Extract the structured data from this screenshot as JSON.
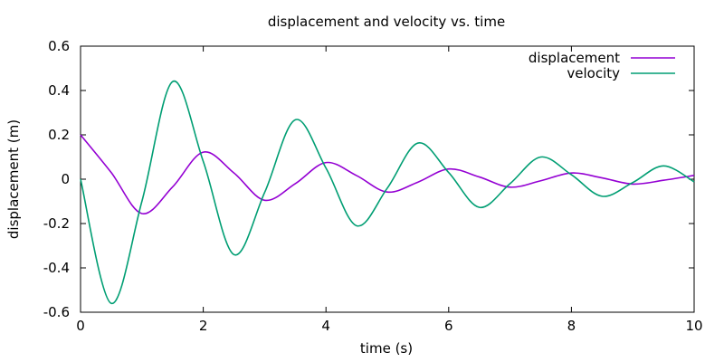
{
  "chart_data": {
    "type": "line",
    "title": "displacement and velocity vs. time",
    "xlabel": "time (s)",
    "ylabel": "displacement (m)",
    "xlim": [
      0,
      10
    ],
    "ylim": [
      -0.6,
      0.6
    ],
    "xticks": [
      0,
      2,
      4,
      6,
      8,
      10
    ],
    "yticks": [
      -0.6,
      -0.4,
      -0.2,
      0,
      0.2,
      0.4,
      0.6
    ],
    "xtick_labels": [
      "0",
      "2",
      "4",
      "6",
      "8",
      "10"
    ],
    "ytick_labels": [
      "-0.6",
      "-0.4",
      "-0.2",
      "0",
      "0.2",
      "0.4",
      "0.6"
    ],
    "grid": false,
    "legend_position": "top-right",
    "x": [
      0,
      0.5,
      1,
      1.5,
      2,
      2.5,
      3,
      3.5,
      4,
      4.5,
      5,
      5.5,
      6,
      6.5,
      7,
      7.5,
      8,
      8.5,
      9,
      9.5,
      10
    ],
    "series": [
      {
        "name": "displacement",
        "color": "#9400d3",
        "values": [
          0.2,
          0.03,
          -0.155,
          -0.035,
          0.122,
          0.028,
          -0.095,
          -0.02,
          0.075,
          0.016,
          -0.058,
          -0.013,
          0.046,
          0.01,
          -0.036,
          -0.007,
          0.028,
          0.006,
          -0.022,
          -0.005,
          0.017
        ]
      },
      {
        "name": "velocity",
        "color": "#009e73",
        "values": [
          0.0,
          -0.56,
          -0.1,
          0.44,
          0.08,
          -0.34,
          -0.06,
          0.268,
          0.05,
          -0.21,
          -0.04,
          0.163,
          0.03,
          -0.127,
          -0.02,
          0.1,
          0.02,
          -0.077,
          -0.015,
          0.06,
          -0.012
        ]
      }
    ]
  }
}
